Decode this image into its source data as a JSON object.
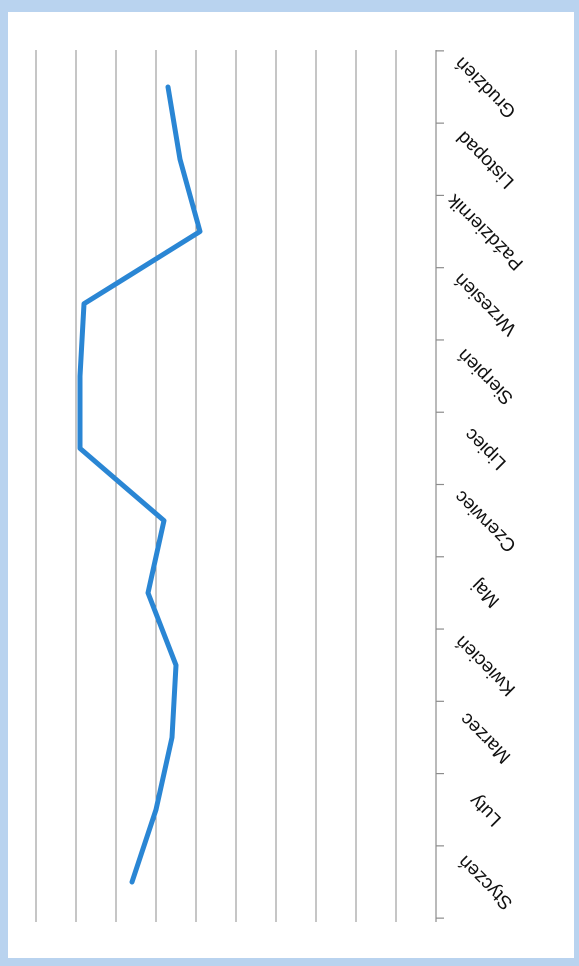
{
  "chart_data": {
    "type": "line",
    "orientation": "rotated-180",
    "categories": [
      "Styczeń",
      "Luty",
      "Marzec",
      "Kwiecień",
      "Maj",
      "Czerwiec",
      "Lipiec",
      "Sierpień",
      "Wrzesień",
      "Październik",
      "Listopad",
      "Grudzień"
    ],
    "series": [
      {
        "values": [
          7.6,
          7.0,
          6.6,
          6.5,
          7.2,
          6.8,
          8.9,
          8.9,
          8.8,
          5.9,
          6.4,
          6.7
        ],
        "color": "#2a86d4"
      }
    ],
    "ylim": [
      0,
      10
    ],
    "grid": true,
    "legend": "none"
  }
}
